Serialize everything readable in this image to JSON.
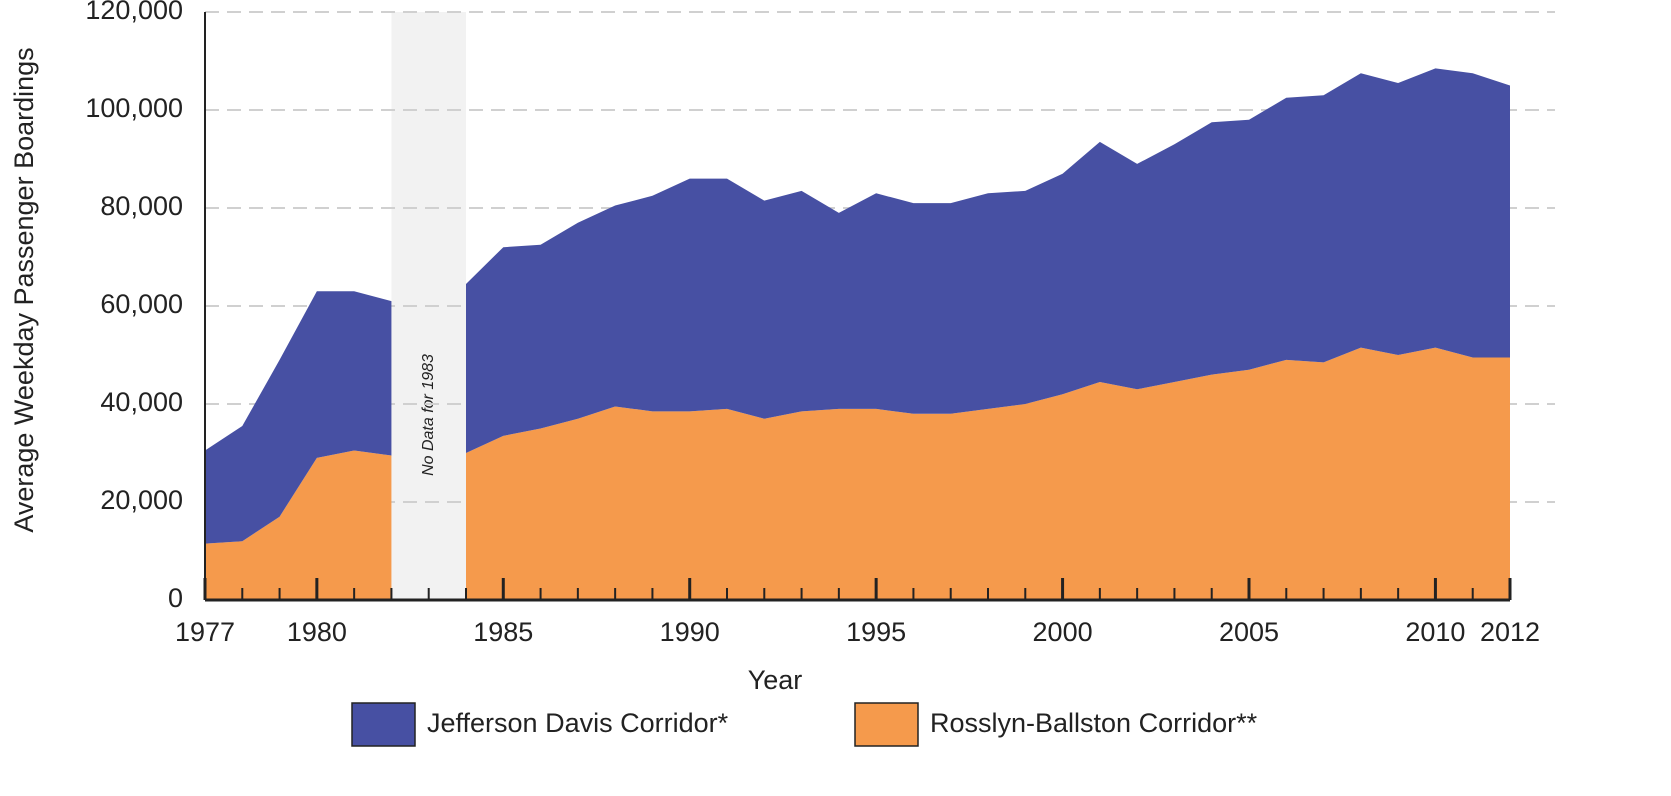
{
  "chart_data": {
    "type": "stacked_area",
    "x_label": "Year",
    "y_label": "Average Weekday Passenger Boardings",
    "annotation": "No Data for 1983",
    "x": [
      1977,
      1978,
      1979,
      1980,
      1981,
      1982,
      1983,
      1984,
      1985,
      1986,
      1987,
      1988,
      1989,
      1990,
      1991,
      1992,
      1993,
      1994,
      1995,
      1996,
      1997,
      1998,
      1999,
      2000,
      2001,
      2002,
      2003,
      2004,
      2005,
      2006,
      2007,
      2008,
      2009,
      2010,
      2011,
      2012
    ],
    "series": [
      {
        "name": "Rosslyn-Ballston Corridor**",
        "color": "#f59a4c",
        "values": [
          11500,
          12000,
          17000,
          29000,
          30500,
          29500,
          null,
          30000,
          33500,
          35000,
          37000,
          39500,
          38500,
          38500,
          39000,
          37000,
          38500,
          39000,
          39000,
          38000,
          38000,
          39000,
          40000,
          42000,
          44500,
          43000,
          44500,
          46000,
          47000,
          49000,
          48500,
          51500,
          50000,
          51500,
          49500,
          49500
        ]
      },
      {
        "name": "Jefferson Davis Corridor*",
        "color": "#4750a3",
        "values": [
          19000,
          23500,
          32000,
          34000,
          32500,
          31500,
          null,
          34500,
          38500,
          37500,
          40000,
          41000,
          44000,
          47500,
          47000,
          44500,
          45000,
          40000,
          44000,
          43000,
          43000,
          44000,
          43500,
          45000,
          49000,
          46000,
          48500,
          51500,
          51000,
          53500,
          54500,
          56000,
          55500,
          57000,
          58000,
          55500
        ]
      }
    ],
    "legend_order": [
      1,
      0
    ],
    "xlim": [
      1977,
      2012
    ],
    "xticks": [
      1977,
      1980,
      1985,
      1990,
      1995,
      2000,
      2005,
      2010,
      2012
    ],
    "ylim": [
      0,
      120000
    ],
    "yticks": [
      0,
      {
        "value": 20000,
        "label": "20,000"
      },
      {
        "value": 40000,
        "label": "40,000"
      },
      {
        "value": 60000,
        "label": "60,000"
      },
      {
        "value": 80000,
        "label": "80,000"
      },
      {
        "value": 100000,
        "label": "100,000"
      },
      {
        "value": 120000,
        "label": "120,000"
      }
    ],
    "grid": true
  }
}
